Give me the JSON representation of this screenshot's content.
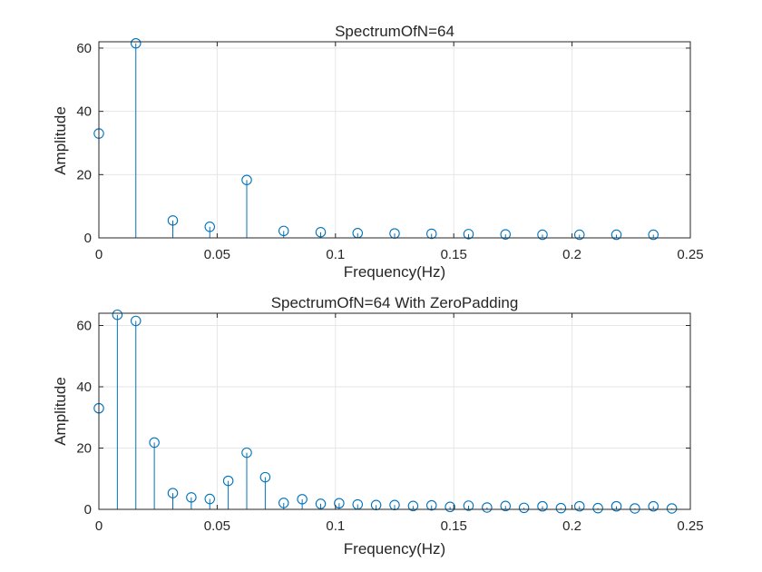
{
  "chart_data": [
    {
      "type": "stem",
      "title": "SpectrumOfN=64",
      "xlabel": "Frequency(Hz)",
      "ylabel": "Amplitude",
      "xlim": [
        0,
        0.25
      ],
      "ylim": [
        0,
        62
      ],
      "xticks": [
        0,
        0.05,
        0.1,
        0.15,
        0.2,
        0.25
      ],
      "xtick_labels": [
        "0",
        "0.05",
        "0.1",
        "0.15",
        "0.2",
        "0.25"
      ],
      "yticks": [
        0,
        20,
        40,
        60
      ],
      "ytick_labels": [
        "0",
        "20",
        "40",
        "60"
      ],
      "grid": true,
      "color": "#0072bd",
      "x": [
        0,
        0.015625,
        0.03125,
        0.046875,
        0.0625,
        0.078125,
        0.09375,
        0.109375,
        0.125,
        0.140625,
        0.15625,
        0.171875,
        0.1875,
        0.203125,
        0.21875,
        0.234375
      ],
      "y": [
        33,
        61.5,
        5.5,
        3.5,
        18.3,
        2.2,
        1.8,
        1.5,
        1.4,
        1.3,
        1.2,
        1.1,
        1.0,
        1.0,
        1.0,
        1.0
      ]
    },
    {
      "type": "stem",
      "title": "SpectrumOfN=64 With ZeroPadding",
      "xlabel": "Frequency(Hz)",
      "ylabel": "Amplitude",
      "xlim": [
        0,
        0.25
      ],
      "ylim": [
        0,
        64
      ],
      "xticks": [
        0,
        0.05,
        0.1,
        0.15,
        0.2,
        0.25
      ],
      "xtick_labels": [
        "0",
        "0.05",
        "0.1",
        "0.15",
        "0.2",
        "0.25"
      ],
      "yticks": [
        0,
        20,
        40,
        60
      ],
      "ytick_labels": [
        "0",
        "20",
        "40",
        "60"
      ],
      "grid": true,
      "color": "#0072bd",
      "x": [
        0,
        0.0078125,
        0.015625,
        0.0234375,
        0.03125,
        0.0390625,
        0.046875,
        0.0546875,
        0.0625,
        0.0703125,
        0.078125,
        0.0859375,
        0.09375,
        0.1015625,
        0.109375,
        0.1171875,
        0.125,
        0.1328125,
        0.140625,
        0.1484375,
        0.15625,
        0.1640625,
        0.171875,
        0.1796875,
        0.1875,
        0.1953125,
        0.203125,
        0.2109375,
        0.21875,
        0.2265625,
        0.234375,
        0.2421875
      ],
      "y": [
        33,
        63.5,
        61.5,
        21.8,
        5.3,
        3.9,
        3.4,
        9.3,
        18.5,
        10.5,
        2.1,
        3.3,
        1.8,
        2.0,
        1.6,
        1.4,
        1.4,
        1.1,
        1.3,
        0.8,
        1.2,
        0.6,
        1.1,
        0.5,
        1.0,
        0.4,
        1.0,
        0.4,
        1.0,
        0.3,
        1.0,
        0.3
      ]
    }
  ]
}
